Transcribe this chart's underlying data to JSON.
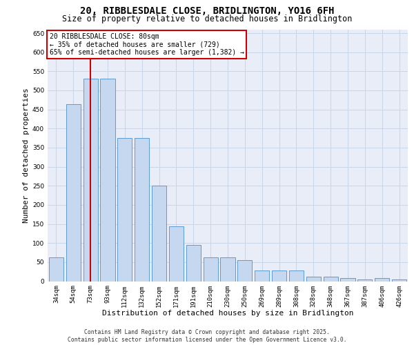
{
  "title1": "20, RIBBLESDALE CLOSE, BRIDLINGTON, YO16 6FH",
  "title2": "Size of property relative to detached houses in Bridlington",
  "xlabel": "Distribution of detached houses by size in Bridlington",
  "ylabel": "Number of detached properties",
  "categories": [
    "34sqm",
    "54sqm",
    "73sqm",
    "93sqm",
    "112sqm",
    "132sqm",
    "152sqm",
    "171sqm",
    "191sqm",
    "210sqm",
    "230sqm",
    "250sqm",
    "269sqm",
    "289sqm",
    "308sqm",
    "328sqm",
    "348sqm",
    "367sqm",
    "387sqm",
    "406sqm",
    "426sqm"
  ],
  "values": [
    62,
    463,
    530,
    530,
    375,
    375,
    250,
    143,
    95,
    63,
    63,
    55,
    28,
    28,
    28,
    11,
    11,
    8,
    5,
    8,
    5
  ],
  "bar_color": "#c5d8f0",
  "bar_edge_color": "#5b9bd5",
  "vline_index": 2,
  "vline_color": "#cc0000",
  "annotation_line1": "20 RIBBLESDALE CLOSE: 80sqm",
  "annotation_line2": "← 35% of detached houses are smaller (729)",
  "annotation_line3": "65% of semi-detached houses are larger (1,382) →",
  "ylim": [
    0,
    660
  ],
  "yticks": [
    0,
    50,
    100,
    150,
    200,
    250,
    300,
    350,
    400,
    450,
    500,
    550,
    600,
    650
  ],
  "grid_color": "#c8d4e8",
  "background_color": "#e8edf8",
  "footer1": "Contains HM Land Registry data © Crown copyright and database right 2025.",
  "footer2": "Contains public sector information licensed under the Open Government Licence v3.0.",
  "title1_fontsize": 10,
  "title2_fontsize": 8.5,
  "tick_fontsize": 6.5,
  "ylabel_fontsize": 8,
  "xlabel_fontsize": 8,
  "footer_fontsize": 5.8,
  "ann_fontsize": 7
}
